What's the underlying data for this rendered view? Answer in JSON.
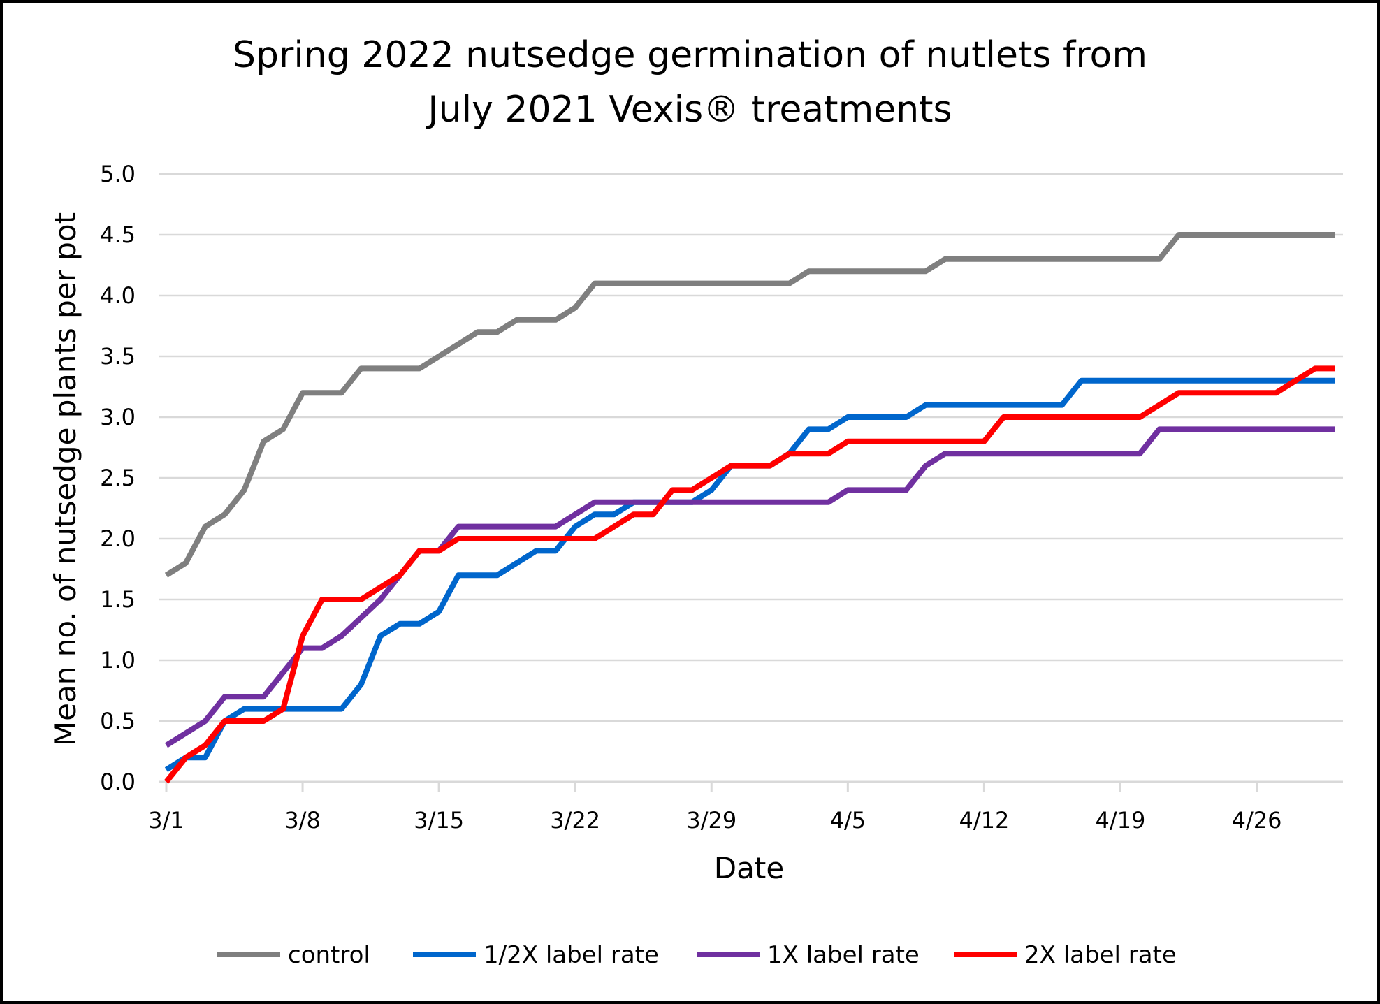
{
  "chart_data": {
    "type": "line",
    "title_lines": [
      "Spring 2022 nutsedge germination of nutlets from",
      "July 2021 Vexis® treatments"
    ],
    "xlabel": "Date",
    "ylabel": "Mean no. of nutsedge plants per pot",
    "ylim": [
      0,
      5
    ],
    "yticks": [
      "0.0",
      "0.5",
      "1.0",
      "1.5",
      "2.0",
      "2.5",
      "3.0",
      "3.5",
      "4.0",
      "4.5",
      "5.0"
    ],
    "x_start": "3/1/2022",
    "x_end": "4/30/2022",
    "xticks": [
      {
        "date": "3/1/2022",
        "label": "3/1"
      },
      {
        "date": "3/8/2022",
        "label": "3/8"
      },
      {
        "date": "3/15/2022",
        "label": "3/15"
      },
      {
        "date": "3/22/2022",
        "label": "3/22"
      },
      {
        "date": "3/29/2022",
        "label": "3/29"
      },
      {
        "date": "4/5/2022",
        "label": "4/5"
      },
      {
        "date": "4/12/2022",
        "label": "4/12"
      },
      {
        "date": "4/19/2022",
        "label": "4/19"
      },
      {
        "date": "4/26/2022",
        "label": "4/26"
      }
    ],
    "grid": true,
    "legend_position": "bottom",
    "series": [
      {
        "name": "control",
        "color": "#7f7f7f",
        "points": [
          [
            "3/1/2022",
            1.7
          ],
          [
            "3/2/2022",
            1.8
          ],
          [
            "3/3/2022",
            2.1
          ],
          [
            "3/4/2022",
            2.2
          ],
          [
            "3/5/2022",
            2.4
          ],
          [
            "3/6/2022",
            2.8
          ],
          [
            "3/7/2022",
            2.9
          ],
          [
            "3/8/2022",
            3.2
          ],
          [
            "3/10/2022",
            3.2
          ],
          [
            "3/11/2022",
            3.4
          ],
          [
            "3/14/2022",
            3.4
          ],
          [
            "3/15/2022",
            3.5
          ],
          [
            "3/17/2022",
            3.7
          ],
          [
            "3/18/2022",
            3.7
          ],
          [
            "3/19/2022",
            3.8
          ],
          [
            "3/21/2022",
            3.8
          ],
          [
            "3/22/2022",
            3.9
          ],
          [
            "3/23/2022",
            4.1
          ],
          [
            "3/26/2022",
            4.1
          ],
          [
            "3/31/2022",
            4.1
          ],
          [
            "4/2/2022",
            4.1
          ],
          [
            "4/3/2022",
            4.2
          ],
          [
            "4/9/2022",
            4.2
          ],
          [
            "4/10/2022",
            4.3
          ],
          [
            "4/21/2022",
            4.3
          ],
          [
            "4/22/2022",
            4.5
          ],
          [
            "4/30/2022",
            4.5
          ]
        ]
      },
      {
        "name": "1/2X label rate",
        "color": "#0066cc",
        "points": [
          [
            "3/1/2022",
            0.1
          ],
          [
            "3/2/2022",
            0.2
          ],
          [
            "3/3/2022",
            0.2
          ],
          [
            "3/4/2022",
            0.5
          ],
          [
            "3/5/2022",
            0.6
          ],
          [
            "3/10/2022",
            0.6
          ],
          [
            "3/11/2022",
            0.8
          ],
          [
            "3/12/2022",
            1.2
          ],
          [
            "3/13/2022",
            1.3
          ],
          [
            "3/14/2022",
            1.3
          ],
          [
            "3/15/2022",
            1.4
          ],
          [
            "3/16/2022",
            1.7
          ],
          [
            "3/18/2022",
            1.7
          ],
          [
            "3/20/2022",
            1.9
          ],
          [
            "3/21/2022",
            1.9
          ],
          [
            "3/22/2022",
            2.1
          ],
          [
            "3/23/2022",
            2.2
          ],
          [
            "3/24/2022",
            2.2
          ],
          [
            "3/25/2022",
            2.3
          ],
          [
            "3/28/2022",
            2.3
          ],
          [
            "3/29/2022",
            2.4
          ],
          [
            "3/30/2022",
            2.6
          ],
          [
            "3/31/2022",
            2.6
          ],
          [
            "4/1/2022",
            2.6
          ],
          [
            "4/2/2022",
            2.7
          ],
          [
            "4/3/2022",
            2.9
          ],
          [
            "4/4/2022",
            2.9
          ],
          [
            "4/5/2022",
            3.0
          ],
          [
            "4/8/2022",
            3.0
          ],
          [
            "4/9/2022",
            3.1
          ],
          [
            "4/16/2022",
            3.1
          ],
          [
            "4/17/2022",
            3.3
          ],
          [
            "4/30/2022",
            3.3
          ]
        ]
      },
      {
        "name": "1X label rate",
        "color": "#7030a0",
        "points": [
          [
            "3/1/2022",
            0.3
          ],
          [
            "3/3/2022",
            0.5
          ],
          [
            "3/4/2022",
            0.7
          ],
          [
            "3/6/2022",
            0.7
          ],
          [
            "3/8/2022",
            1.1
          ],
          [
            "3/9/2022",
            1.1
          ],
          [
            "3/10/2022",
            1.2
          ],
          [
            "3/12/2022",
            1.5
          ],
          [
            "3/14/2022",
            1.9
          ],
          [
            "3/15/2022",
            1.9
          ],
          [
            "3/16/2022",
            2.1
          ],
          [
            "3/21/2022",
            2.1
          ],
          [
            "3/23/2022",
            2.3
          ],
          [
            "4/4/2022",
            2.3
          ],
          [
            "4/5/2022",
            2.4
          ],
          [
            "4/8/2022",
            2.4
          ],
          [
            "4/9/2022",
            2.6
          ],
          [
            "4/10/2022",
            2.7
          ],
          [
            "4/20/2022",
            2.7
          ],
          [
            "4/21/2022",
            2.9
          ],
          [
            "4/30/2022",
            2.9
          ]
        ]
      },
      {
        "name": "2X label rate",
        "color": "#ff0000",
        "points": [
          [
            "3/1/2022",
            0.0
          ],
          [
            "3/2/2022",
            0.2
          ],
          [
            "3/3/2022",
            0.3
          ],
          [
            "3/4/2022",
            0.5
          ],
          [
            "3/6/2022",
            0.5
          ],
          [
            "3/7/2022",
            0.6
          ],
          [
            "3/8/2022",
            1.2
          ],
          [
            "3/9/2022",
            1.5
          ],
          [
            "3/11/2022",
            1.5
          ],
          [
            "3/13/2022",
            1.7
          ],
          [
            "3/14/2022",
            1.9
          ],
          [
            "3/15/2022",
            1.9
          ],
          [
            "3/16/2022",
            2.0
          ],
          [
            "3/23/2022",
            2.0
          ],
          [
            "3/25/2022",
            2.2
          ],
          [
            "3/26/2022",
            2.2
          ],
          [
            "3/27/2022",
            2.4
          ],
          [
            "3/28/2022",
            2.4
          ],
          [
            "3/29/2022",
            2.5
          ],
          [
            "3/30/2022",
            2.6
          ],
          [
            "4/1/2022",
            2.6
          ],
          [
            "4/2/2022",
            2.7
          ],
          [
            "4/4/2022",
            2.7
          ],
          [
            "4/5/2022",
            2.8
          ],
          [
            "4/12/2022",
            2.8
          ],
          [
            "4/13/2022",
            3.0
          ],
          [
            "4/20/2022",
            3.0
          ],
          [
            "4/22/2022",
            3.2
          ],
          [
            "4/27/2022",
            3.2
          ],
          [
            "4/29/2022",
            3.4
          ],
          [
            "4/30/2022",
            3.4
          ]
        ]
      }
    ]
  }
}
